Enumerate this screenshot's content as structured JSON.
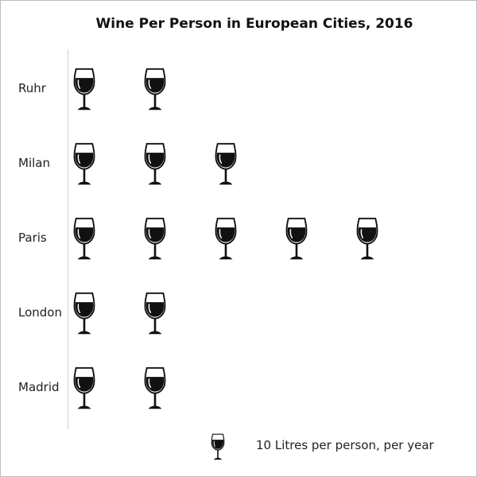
{
  "chart_data": {
    "type": "pictogram",
    "title": "Wine Per Person in European Cities, 2016",
    "categories": [
      "Ruhr",
      "Milan",
      "Paris",
      "London",
      "Madrid"
    ],
    "values": [
      20,
      30,
      50,
      20,
      20
    ],
    "unit_value": 10,
    "icon": "wine-glass-icon",
    "legend": {
      "label": "10 Litres per person, per year",
      "icon": "wine-glass-icon"
    }
  }
}
